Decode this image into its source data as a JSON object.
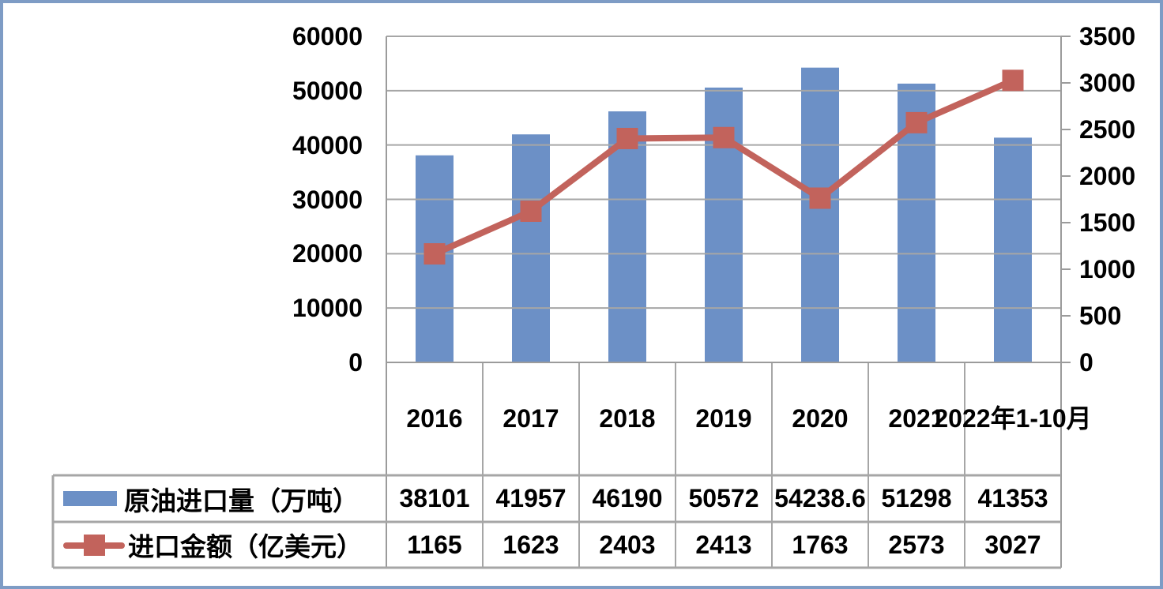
{
  "chart_data": {
    "type": "combo",
    "title": "",
    "categories": [
      "2016",
      "2017",
      "2018",
      "2019",
      "2020",
      "2021",
      "2022年1-10月"
    ],
    "series": [
      {
        "name": "原油进口量（万吨）",
        "type": "bar",
        "axis": "left",
        "color": "#6C90C6",
        "values": [
          38101,
          41957,
          46190,
          50572,
          54238.6,
          51298,
          41353
        ],
        "display_values": [
          "38101",
          "41957",
          "46190",
          "50572",
          "54238.6",
          "51298",
          "41353"
        ]
      },
      {
        "name": "进口金额（亿美元）",
        "type": "line",
        "axis": "right",
        "color": "#C2635C",
        "values": [
          1165,
          1623,
          2403,
          2413,
          1763,
          2573,
          3027
        ],
        "display_values": [
          "1165",
          "1623",
          "2403",
          "2413",
          "1763",
          "2573",
          "3027"
        ]
      }
    ],
    "left_axis": {
      "min": 0,
      "max": 60000,
      "step": 10000,
      "tick_labels": [
        "0",
        "10000",
        "20000",
        "30000",
        "40000",
        "50000",
        "60000"
      ]
    },
    "right_axis": {
      "min": 0,
      "max": 3500,
      "step": 500,
      "tick_labels": [
        "0",
        "500",
        "1000",
        "1500",
        "2000",
        "2500",
        "3000",
        "3500"
      ]
    },
    "grid": true,
    "legend_position": "data-table-left",
    "data_table_shown": true
  },
  "style": {
    "frame_border": "#7E9CC5",
    "grid_color": "#A6A6A6",
    "axis_color": "#9B9B9B",
    "table_border_color": "#A6A6A6",
    "text_color": "#000000",
    "background": "#FFFFFF"
  }
}
